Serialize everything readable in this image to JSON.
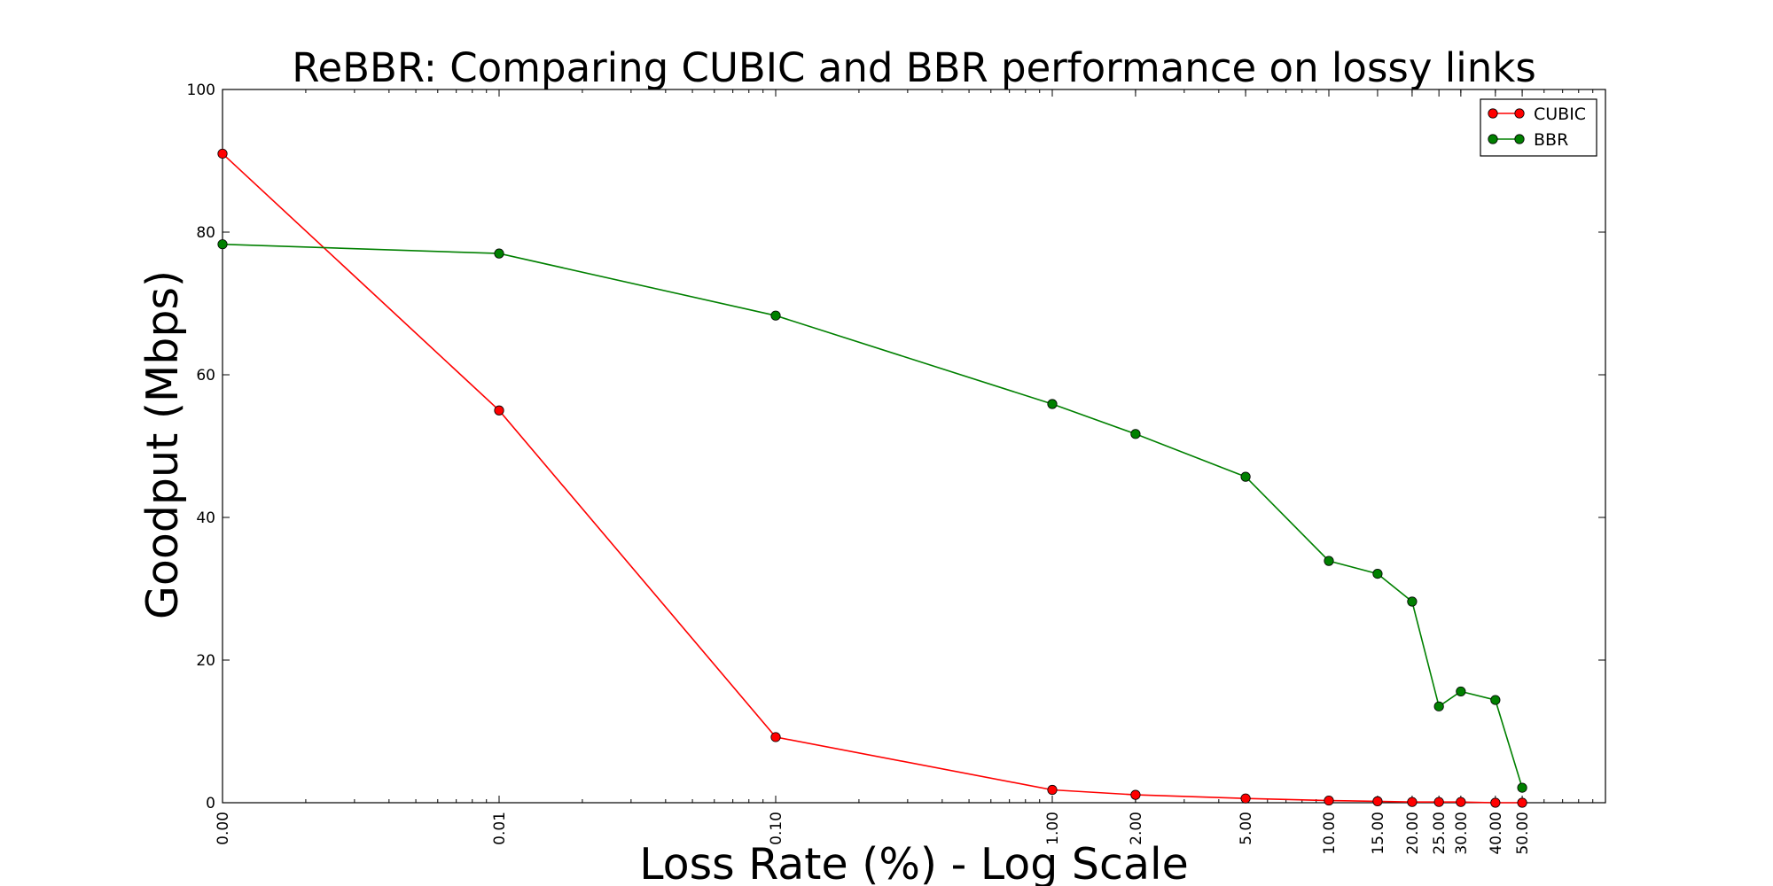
{
  "chart_data": {
    "type": "line",
    "title": "ReBBR: Comparing CUBIC and BBR performance on lossy links",
    "xlabel": "Loss Rate (%) - Log Scale",
    "ylabel": "Goodput (Mbps)",
    "x_scale": "log",
    "xlim": [
      0.001,
      100
    ],
    "ylim": [
      0,
      100
    ],
    "x_ticks": [
      0.001,
      0.01,
      0.1,
      1,
      2,
      5,
      10,
      15,
      20,
      25,
      30,
      40,
      50
    ],
    "x_tick_labels": [
      "0.00",
      "0.01",
      "0.10",
      "1.00",
      "2.00",
      "5.00",
      "10.00",
      "15.00",
      "20.00",
      "25.00",
      "30.00",
      "40.00",
      "50.00"
    ],
    "y_ticks": [
      0,
      20,
      40,
      60,
      80,
      100
    ],
    "y_tick_labels": [
      "0",
      "20",
      "40",
      "60",
      "80",
      "100"
    ],
    "grid": false,
    "legend_position": "top-right",
    "x": [
      0.001,
      0.01,
      0.1,
      1,
      2,
      5,
      10,
      15,
      20,
      25,
      30,
      40,
      50
    ],
    "series": [
      {
        "name": "CUBIC",
        "color": "#ff0000",
        "values": [
          91.0,
          55.0,
          9.2,
          1.8,
          1.1,
          0.6,
          0.3,
          0.2,
          0.1,
          0.1,
          0.1,
          0.0,
          0.0
        ]
      },
      {
        "name": "BBR",
        "color": "#008000",
        "values": [
          78.3,
          77.0,
          68.3,
          55.9,
          51.7,
          45.7,
          33.9,
          32.1,
          28.2,
          13.5,
          15.6,
          14.4,
          2.1
        ]
      }
    ]
  }
}
